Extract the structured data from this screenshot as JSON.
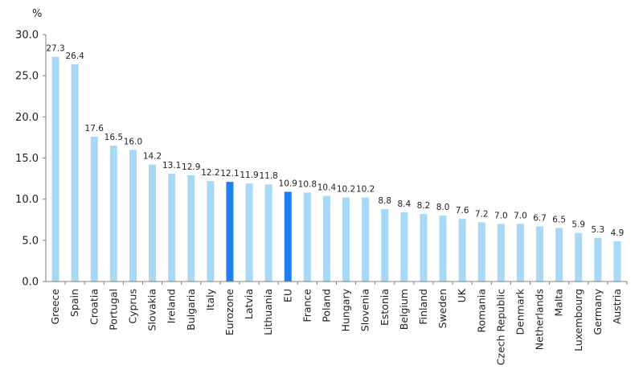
{
  "chart_data": {
    "type": "bar",
    "unit_label": "%",
    "categories": [
      "Greece",
      "Spain",
      "Croatia",
      "Portugal",
      "Cyprus",
      "Slovakia",
      "Ireland",
      "Bulgaria",
      "Italy",
      "Eurozone",
      "Latvia",
      "Lithuania",
      "EU",
      "France",
      "Poland",
      "Hungary",
      "Slovenia",
      "Estonia",
      "Belgium",
      "Finland",
      "Sweden",
      "UK",
      "Romania",
      "Czech Republic",
      "Denmark",
      "Netherlands",
      "Malta",
      "Luxembourg",
      "Germany",
      "Austria"
    ],
    "values": [
      27.3,
      26.4,
      17.6,
      16.5,
      16.0,
      14.2,
      13.1,
      12.9,
      12.2,
      12.1,
      11.9,
      11.8,
      10.9,
      10.8,
      10.4,
      10.2,
      10.2,
      8.8,
      8.4,
      8.2,
      8.0,
      7.6,
      7.2,
      7.0,
      7.0,
      6.7,
      6.5,
      5.9,
      5.3,
      4.9
    ],
    "data_labels": [
      "27.3",
      "26.4",
      "17.6",
      "16.5",
      "16.0",
      "14.2",
      "13.1",
      "12.9",
      "12.2",
      "12.1",
      "11.9",
      "11.8",
      "10.9",
      "10.8",
      "10.4",
      "10.2",
      "10.2",
      "8.8",
      "8.4",
      "8.2",
      "8.0",
      "7.6",
      "7.2",
      "7.0",
      "7.0",
      "6.7",
      "6.5",
      "5.9",
      "5.3",
      "4.9"
    ],
    "highlighted": [
      "Eurozone",
      "EU"
    ],
    "colors": {
      "default_bar": "#a8d8f8",
      "highlight_bar": "#1e7ff0",
      "axis": "#7f7f7f"
    },
    "ylim": [
      0,
      30
    ],
    "yticks": [
      "0.0",
      "5.0",
      "10.0",
      "15.0",
      "20.0",
      "25.0",
      "30.0"
    ],
    "ytick_values": [
      0,
      5,
      10,
      15,
      20,
      25,
      30
    ],
    "grid": false,
    "legend": "none"
  }
}
